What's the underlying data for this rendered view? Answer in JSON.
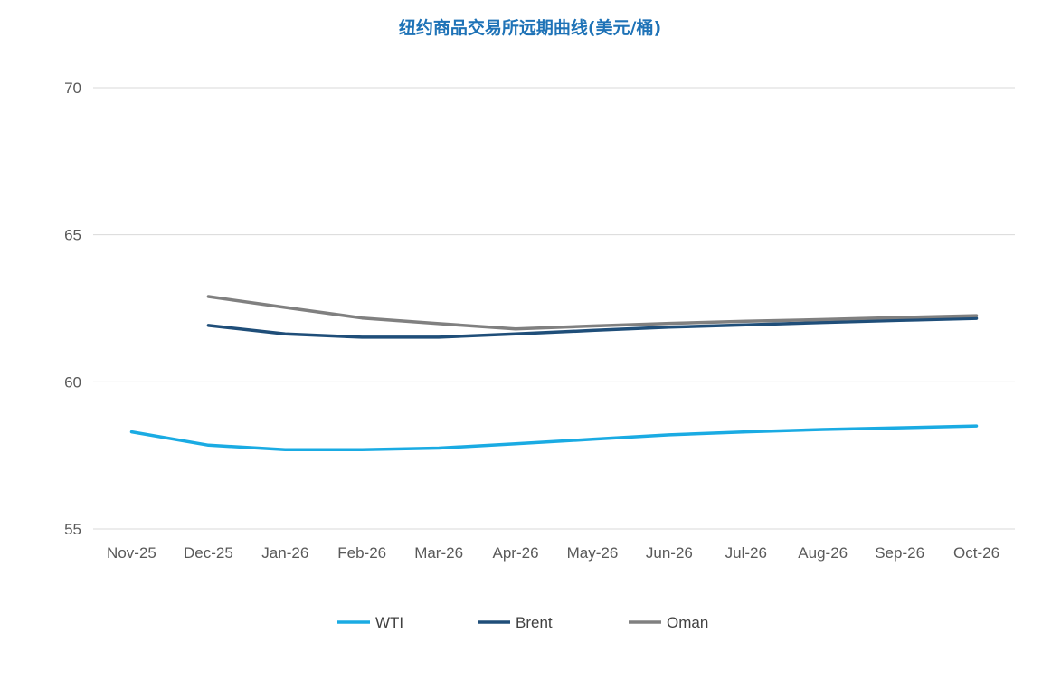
{
  "chart_data": {
    "type": "line",
    "title": "纽约商品交易所远期曲线(美元/桶)",
    "xlabel": "",
    "ylabel": "",
    "ylim": [
      55,
      70
    ],
    "yticks": [
      55,
      60,
      65,
      70
    ],
    "grid": "horizontal",
    "legend_position": "bottom",
    "categories": [
      "Nov-25",
      "Dec-25",
      "Jan-26",
      "Feb-26",
      "Mar-26",
      "Apr-26",
      "May-26",
      "Jun-26",
      "Jul-26",
      "Aug-26",
      "Sep-26",
      "Oct-26"
    ],
    "series": [
      {
        "name": "WTI",
        "color": "#1aabe3",
        "values": [
          58.3,
          57.85,
          57.7,
          57.7,
          57.75,
          57.9,
          58.05,
          58.2,
          58.3,
          58.38,
          58.44,
          58.5
        ]
      },
      {
        "name": "Brent",
        "color": "#1f4e79",
        "values": [
          null,
          61.92,
          61.63,
          61.52,
          61.52,
          61.63,
          61.75,
          61.86,
          61.94,
          62.02,
          62.09,
          62.16
        ]
      },
      {
        "name": "Oman",
        "color": "#808080",
        "values": [
          null,
          62.9,
          62.53,
          62.17,
          61.98,
          61.8,
          61.9,
          61.99,
          62.06,
          62.12,
          62.19,
          62.25
        ]
      }
    ]
  },
  "colors": {
    "title": "#1f73b7",
    "grid": "#d9d9d9",
    "tick_text": "#595959"
  }
}
